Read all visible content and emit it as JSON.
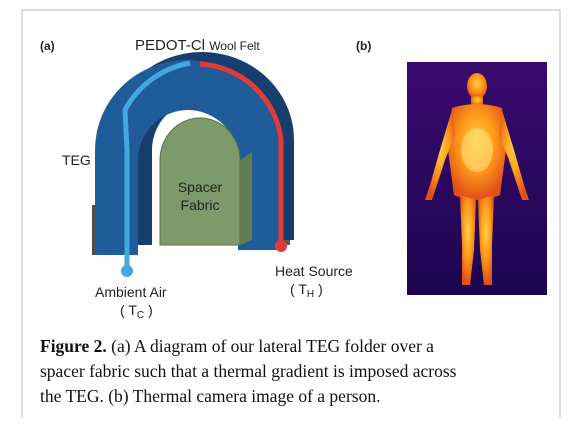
{
  "panel_a": {
    "label": "(a)",
    "title_main": "PEDOT-Cl",
    "title_small": "Wool Felt",
    "teg": "TEG",
    "spacer": [
      "Spacer",
      "Fabric"
    ],
    "heat_source": "Heat Source",
    "heat_symbol": {
      "open": "(",
      "letter": "T",
      "subscript": "H",
      "close": ")"
    },
    "ambient_air": "Ambient Air",
    "ambient_symbol": {
      "open": "(",
      "letter": "T",
      "subscript": "C",
      "close": ")"
    }
  },
  "panel_b": {
    "label": "(b)"
  },
  "caption": {
    "label": "Figure 2.",
    "lines": [
      "(a) A diagram of our lateral TEG folder over a",
      "spacer fabric such that a thermal gradient is imposed across",
      "the TEG. (b) Thermal camera image of a person."
    ]
  }
}
